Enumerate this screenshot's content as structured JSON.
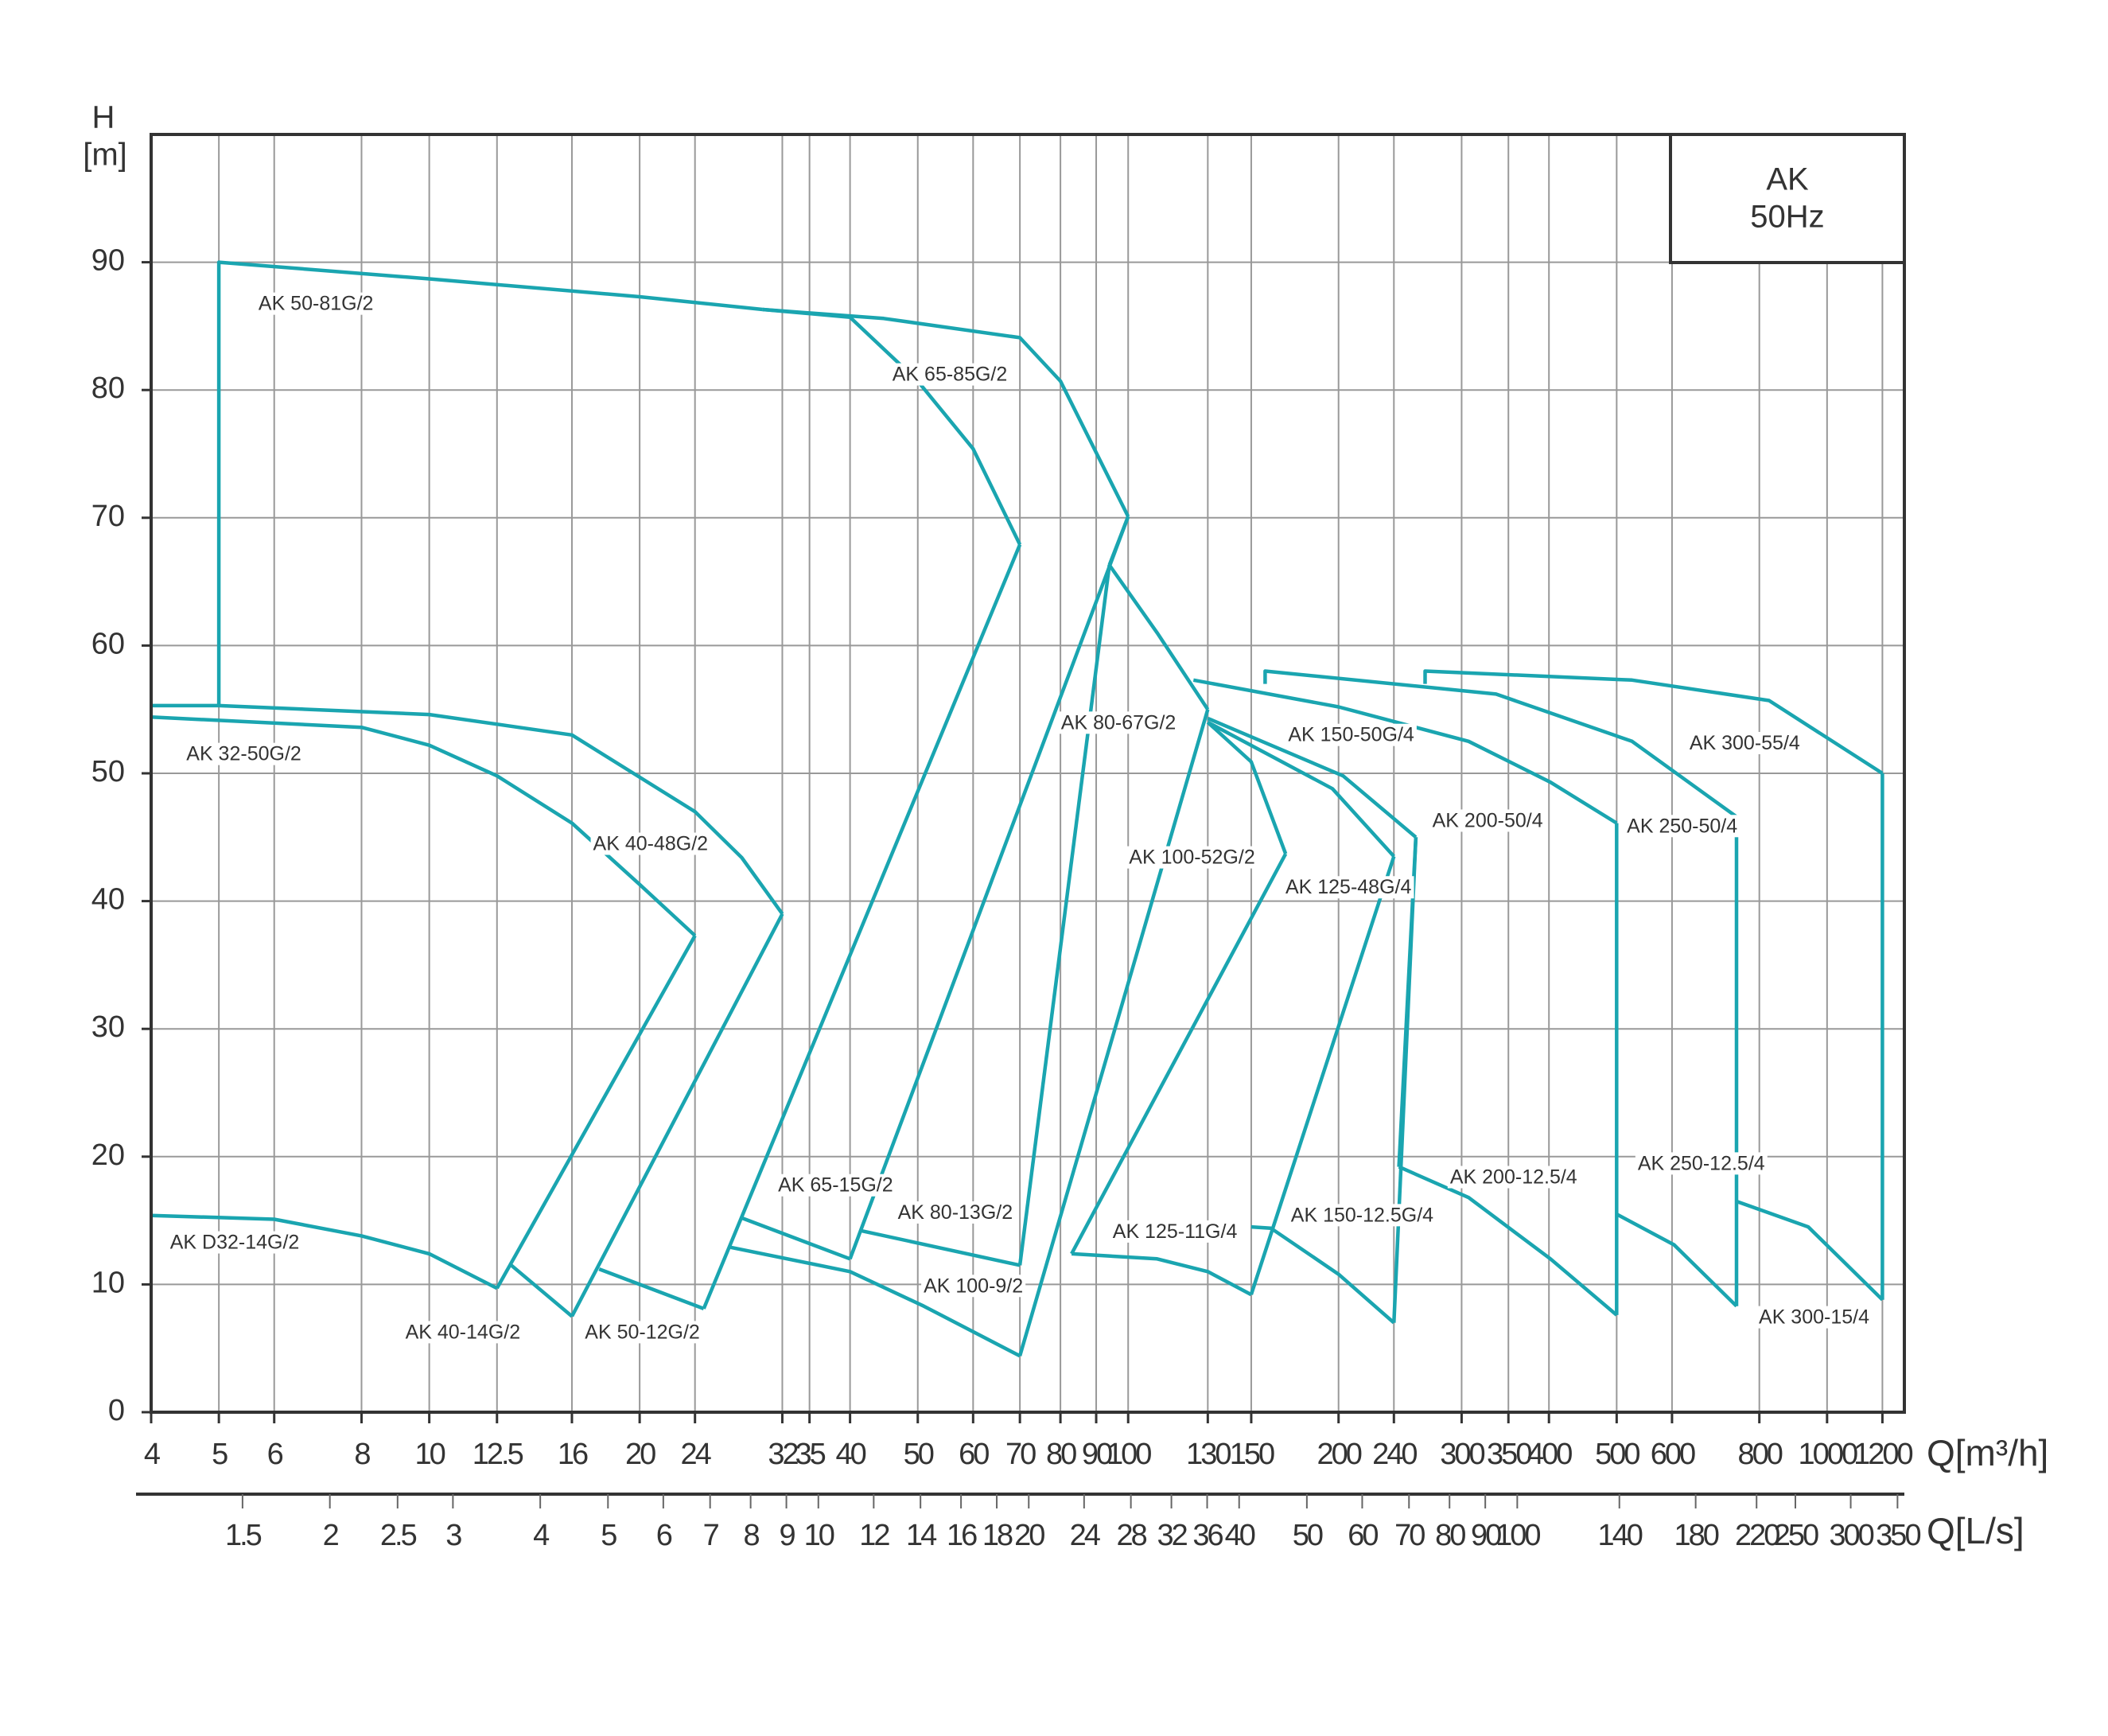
{
  "chart_data": {
    "type": "line",
    "xscale": "log",
    "grid": true,
    "color": "#1aa5b0",
    "ylabel": "H",
    "yunit": "[m]",
    "xlabel": "Q[m³/h]",
    "x2label": "Q[L/s]",
    "annotations": [
      "AK",
      "50Hz"
    ],
    "xlim": [
      4,
      1290
    ],
    "ylim": [
      0,
      100
    ],
    "x2lim": [
      1.11,
      358
    ],
    "yticks": [
      0,
      10,
      20,
      30,
      40,
      50,
      60,
      70,
      80,
      90
    ],
    "xticks": [
      4,
      5,
      6,
      8,
      10,
      12.5,
      16,
      20,
      24,
      32,
      35,
      40,
      50,
      60,
      70,
      80,
      90,
      100,
      130,
      150,
      200,
      240,
      300,
      350,
      400,
      500,
      600,
      800,
      1000,
      1200
    ],
    "x2ticks": [
      1.5,
      2,
      2.5,
      3,
      4,
      5,
      6,
      7,
      8,
      9,
      10,
      12,
      14,
      16,
      18,
      20,
      24,
      28,
      32,
      36,
      40,
      50,
      60,
      70,
      80,
      90,
      100,
      140,
      180,
      220,
      250,
      300,
      350
    ],
    "series": [
      {
        "name": "AK 50-81G/2",
        "x": [
          5,
          5,
          10,
          20,
          30
        ],
        "values": [
          55.3,
          90,
          88.7,
          87.3,
          86.3
        ]
      },
      {
        "name": "AK 65-85G/2",
        "x": [
          30,
          44.7,
          70,
          80,
          100
        ],
        "values": [
          86.3,
          85.6,
          84.1,
          80.7,
          70.1
        ]
      },
      {
        "x": [
          30,
          40,
          50,
          60,
          70
        ],
        "values": [
          86.3,
          85.7,
          80.7,
          75.4,
          67.9
        ]
      },
      {
        "name": "AK 32-50G/2",
        "x": [
          4,
          5,
          10,
          16,
          24,
          28,
          32
        ],
        "values": [
          55.3,
          55.3,
          54.6,
          53,
          47,
          43.4,
          39
        ]
      },
      {
        "name": "AK 40-48G/2",
        "x": [
          4,
          8,
          10,
          12.5,
          16,
          20,
          24
        ],
        "values": [
          54.4,
          53.6,
          52.2,
          49.8,
          46.1,
          41.3,
          37.3
        ]
      },
      {
        "name": "AK 80-67G/2",
        "x": [
          94,
          110,
          130
        ],
        "values": [
          66.3,
          61,
          55
        ]
      },
      {
        "name": "AK 100-52G/2",
        "x": [
          130,
          150,
          168
        ],
        "values": [
          54,
          50.9,
          43.7
        ]
      },
      {
        "name": "AK 125-48G/4",
        "x": [
          130,
          196,
          240
        ],
        "values": [
          54,
          48.8,
          43.5
        ]
      },
      {
        "name": "AK 150-50G/4",
        "x": [
          130,
          203,
          258
        ],
        "values": [
          54.3,
          49.8,
          45
        ]
      },
      {
        "name": "AK 200-50/4",
        "x": [
          124,
          200,
          307,
          402,
          500
        ],
        "values": [
          57.3,
          55.2,
          52.5,
          49.3,
          46.1
        ]
      },
      {
        "name": "AK 250-50/4",
        "x": [
          157,
          157,
          336,
          526,
          742
        ],
        "values": [
          57,
          58,
          56.2,
          52.5,
          46.6
        ]
      },
      {
        "name": "AK 300-55/4",
        "x": [
          266,
          266,
          526,
          826,
          1200
        ],
        "values": [
          57,
          58,
          57.3,
          55.7,
          50
        ]
      },
      {
        "name": "AK D32-14G/2",
        "x": [
          4,
          6,
          8,
          10,
          12.5
        ],
        "values": [
          15.4,
          15.1,
          13.8,
          12.4,
          9.7
        ]
      },
      {
        "name": "AK 40-14G/2",
        "x": [
          13.1,
          16
        ],
        "values": [
          11.5,
          7.5
        ]
      },
      {
        "name": "AK 50-12G/2",
        "x": [
          17.5,
          24.7
        ],
        "values": [
          11.2,
          8.1
        ]
      },
      {
        "name": "AK 65-15G/2",
        "x": [
          28,
          40
        ],
        "values": [
          15.2,
          12
        ]
      },
      {
        "name": "AK 80-13G/2",
        "x": [
          41.5,
          70
        ],
        "values": [
          14.2,
          11.5
        ]
      },
      {
        "name": "AK 100-9/2",
        "x": [
          27,
          40,
          51,
          70
        ],
        "values": [
          12.9,
          11,
          8.3,
          4.4
        ]
      },
      {
        "name": "AK 125-11G/4",
        "x": [
          83,
          110,
          130,
          150
        ],
        "values": [
          12.4,
          12,
          11,
          9.2
        ]
      },
      {
        "name": "AK 150-12.5G/4",
        "x": [
          150,
          160,
          200,
          240
        ],
        "values": [
          14.5,
          14.4,
          10.8,
          7
        ]
      },
      {
        "name": "AK 200-12.5/4",
        "x": [
          244,
          307,
          402,
          500
        ],
        "values": [
          19.2,
          16.8,
          12,
          7.6
        ]
      },
      {
        "name": "AK 250-12.5/4",
        "x": [
          500,
          604,
          742
        ],
        "values": [
          15.5,
          13.1,
          8.3
        ]
      },
      {
        "name": "AK 300-15/4",
        "x": [
          742,
          940,
          1200
        ],
        "values": [
          16.5,
          14.5,
          8.8
        ]
      },
      {
        "x": [
          12.5,
          24
        ],
        "values": [
          9.7,
          37.3
        ]
      },
      {
        "x": [
          16,
          32
        ],
        "values": [
          7.5,
          39
        ]
      },
      {
        "x": [
          24.7,
          70
        ],
        "values": [
          8.1,
          67.9
        ]
      },
      {
        "x": [
          40,
          100
        ],
        "values": [
          12,
          70.1
        ]
      },
      {
        "x": [
          70,
          94
        ],
        "values": [
          11.5,
          66.3
        ]
      },
      {
        "x": [
          70,
          130
        ],
        "values": [
          4.4,
          55
        ]
      },
      {
        "x": [
          83,
          168
        ],
        "values": [
          12.4,
          43.7
        ]
      },
      {
        "x": [
          150,
          240
        ],
        "values": [
          9.2,
          43.5
        ]
      },
      {
        "x": [
          240,
          258
        ],
        "values": [
          7,
          45
        ]
      },
      {
        "x": [
          258,
          244
        ],
        "values": [
          45,
          19.2
        ]
      },
      {
        "x": [
          500,
          500
        ],
        "values": [
          46.1,
          7.6
        ]
      },
      {
        "x": [
          742,
          742
        ],
        "values": [
          46.6,
          8.3
        ]
      },
      {
        "x": [
          1200,
          1200
        ],
        "values": [
          50,
          8.8
        ]
      },
      {
        "x": [
          100,
          94
        ],
        "values": [
          70.1,
          66.3
        ]
      }
    ]
  }
}
